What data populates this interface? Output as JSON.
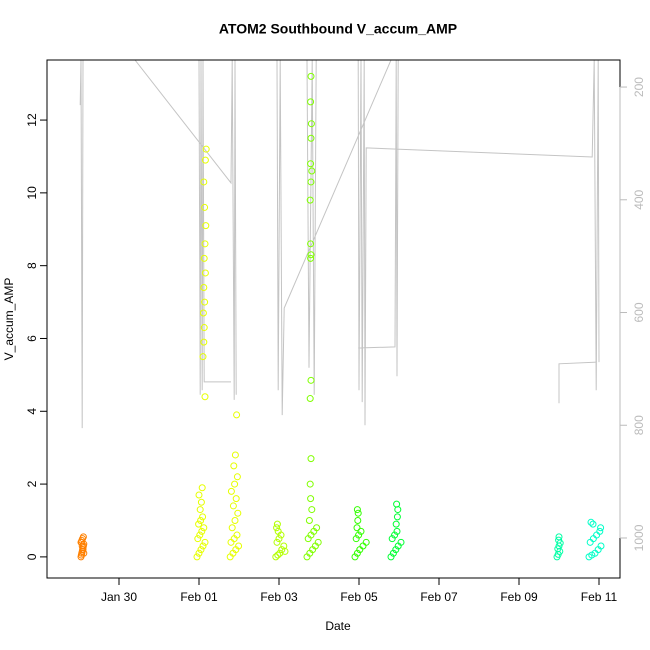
{
  "chart_data": {
    "type": "scatter",
    "title": "ATOM2 Southbound V_accum_AMP",
    "x_label": "Date",
    "y_label": "V_accum_AMP",
    "xlim": [
      28.2,
      42.525
    ],
    "xticks": [
      {
        "value": 30,
        "label": "Jan 30"
      },
      {
        "value": 32,
        "label": "Feb 01"
      },
      {
        "value": 34,
        "label": "Feb 03"
      },
      {
        "value": 36,
        "label": "Feb 05"
      },
      {
        "value": 38,
        "label": "Feb 07"
      },
      {
        "value": 40,
        "label": "Feb 09"
      },
      {
        "value": 42,
        "label": "Feb 11"
      }
    ],
    "ylim": [
      -0.58,
      13.65
    ],
    "yticks": [
      0,
      2,
      4,
      6,
      8,
      10,
      12
    ],
    "y2lim": [
      1071,
      152
    ],
    "y2ticks": [
      200,
      400,
      600,
      800,
      1000
    ],
    "series": [
      {
        "type": "line",
        "axis": "y2",
        "color": "#c4c4c4",
        "x": [
          29.03,
          29.05,
          29.08,
          29.1,
          29.1,
          30.4,
          32.8,
          32.83,
          32.88,
          32.9,
          32.93,
          32.93,
          32.0,
          32.03,
          32.05,
          32.08,
          32.1,
          32.13,
          32.8,
          32.8,
          33.95,
          33.98,
          34.03,
          34.08,
          34.13,
          36.8,
          36.8,
          34.7,
          34.75,
          34.83,
          34.88,
          34.93,
          34.93,
          35.98,
          36.0,
          36.05,
          36.08,
          36.13,
          36.15,
          36.18,
          41.83,
          41.88,
          41.93,
          41.98,
          42.0,
          42.0,
          35.98,
          36.9,
          36.93,
          36.95,
          36.98,
          36.98,
          41.0,
          41.0,
          41.95
        ],
        "values": [
          232,
          152,
          805,
          152,
          null,
          152,
          370,
          152,
          755,
          152,
          746,
          null,
          152,
          746,
          152,
          738,
          152,
          723,
          723,
          null,
          152,
          738,
          152,
          782,
          592,
          152,
          null,
          152,
          698,
          152,
          746,
          152,
          null,
          152,
          738,
          152,
          759,
          152,
          800,
          308,
          324,
          152,
          738,
          152,
          688,
          null,
          663,
          661,
          152,
          713,
          152,
          null,
          761,
          691,
          688
        ]
      },
      {
        "color": "#ff8000",
        "x": [
          29.05,
          29.06,
          29.07,
          29.08,
          29.09,
          29.1,
          29.11,
          29.12,
          29.05,
          29.07,
          29.09,
          29.11,
          29.12,
          29.1,
          29.08,
          29.06
        ],
        "values": [
          0,
          0.05,
          0.1,
          0.15,
          0.2,
          0.25,
          0.3,
          0.35,
          0.4,
          0.45,
          0.5,
          0.55,
          0.1,
          0.2,
          0.3,
          0.4
        ]
      },
      {
        "color": "#e6ff00",
        "x": [
          31.95,
          32.0,
          32.05,
          32.1,
          32.15,
          31.97,
          32.02,
          32.07,
          32.12,
          31.99,
          32.04,
          32.09,
          32.03,
          32.06,
          32.0,
          32.08,
          32.15,
          32.1,
          32.12,
          32.13,
          32.11,
          32.14,
          32.12,
          32.16,
          32.13,
          32.15,
          32.17,
          32.14,
          32.12,
          32.16,
          32.18,
          32.78,
          32.85,
          32.92,
          32.99,
          32.8,
          32.88,
          32.95,
          32.83,
          32.9,
          32.97,
          32.86,
          32.93,
          32.81,
          32.89,
          32.96,
          32.87,
          32.91,
          32.94
        ],
        "values": [
          0,
          0.1,
          0.2,
          0.3,
          0.4,
          0.5,
          0.6,
          0.7,
          0.8,
          0.9,
          1.0,
          1.1,
          1.3,
          1.5,
          1.7,
          1.9,
          4.4,
          5.5,
          5.9,
          6.3,
          6.7,
          7.0,
          7.4,
          7.8,
          8.2,
          8.6,
          9.1,
          9.6,
          10.3,
          10.9,
          11.2,
          0,
          0.1,
          0.2,
          0.3,
          0.4,
          0.5,
          0.6,
          0.8,
          1.0,
          1.2,
          1.4,
          1.6,
          1.8,
          2.0,
          2.2,
          2.5,
          2.8,
          3.9
        ]
      },
      {
        "color": "#b3ff00",
        "x": [
          33.92,
          33.97,
          34.02,
          34.07,
          34.12,
          33.95,
          34.0,
          34.05,
          33.98,
          33.94,
          33.96,
          34.15
        ],
        "values": [
          0,
          0.05,
          0.1,
          0.2,
          0.3,
          0.4,
          0.5,
          0.6,
          0.7,
          0.8,
          0.9,
          0.15
        ]
      },
      {
        "color": "#80ff00",
        "x": [
          34.7,
          34.77,
          34.84,
          34.91,
          34.98,
          34.73,
          34.8,
          34.87,
          34.94,
          34.76,
          34.82,
          34.79,
          34.78,
          34.8,
          34.78,
          34.8,
          34.79,
          34.8,
          34.79,
          34.78,
          34.8,
          34.82,
          34.79,
          34.8,
          34.81,
          34.79,
          34.8
        ],
        "values": [
          0,
          0.1,
          0.2,
          0.3,
          0.4,
          0.5,
          0.6,
          0.7,
          0.8,
          1.0,
          1.3,
          1.6,
          2.0,
          2.7,
          4.35,
          4.85,
          8.2,
          8.3,
          8.6,
          9.8,
          10.3,
          10.6,
          10.8,
          11.5,
          11.9,
          12.5,
          13.2
        ]
      },
      {
        "color": "#33ff00",
        "x": [
          35.9,
          35.96,
          36.02,
          36.1,
          36.18,
          35.93,
          35.99,
          36.05,
          35.95,
          35.97,
          35.98,
          35.96
        ],
        "values": [
          0,
          0.1,
          0.2,
          0.3,
          0.4,
          0.5,
          0.6,
          0.7,
          0.8,
          1.0,
          1.2,
          1.3
        ]
      },
      {
        "color": "#00ff33",
        "x": [
          36.8,
          36.86,
          36.92,
          36.98,
          37.05,
          36.83,
          36.89,
          36.95,
          36.93,
          36.96,
          36.97,
          36.94
        ],
        "values": [
          0,
          0.1,
          0.2,
          0.3,
          0.4,
          0.5,
          0.6,
          0.7,
          0.9,
          1.1,
          1.3,
          1.45
        ]
      },
      {
        "color": "#00ffa6",
        "x": [
          40.95,
          40.98,
          41.02,
          40.97,
          41.0,
          41.03,
          40.99,
          41.0
        ],
        "values": [
          0,
          0.07,
          0.15,
          0.22,
          0.3,
          0.38,
          0.46,
          0.55
        ]
      },
      {
        "color": "#00ffc8",
        "x": [
          41.75,
          41.82,
          41.9,
          41.98,
          42.05,
          41.78,
          41.86,
          41.94,
          42.02,
          42.04,
          41.85,
          41.8
        ],
        "values": [
          0,
          0.05,
          0.1,
          0.2,
          0.3,
          0.4,
          0.5,
          0.6,
          0.7,
          0.8,
          0.9,
          0.95
        ]
      }
    ]
  }
}
